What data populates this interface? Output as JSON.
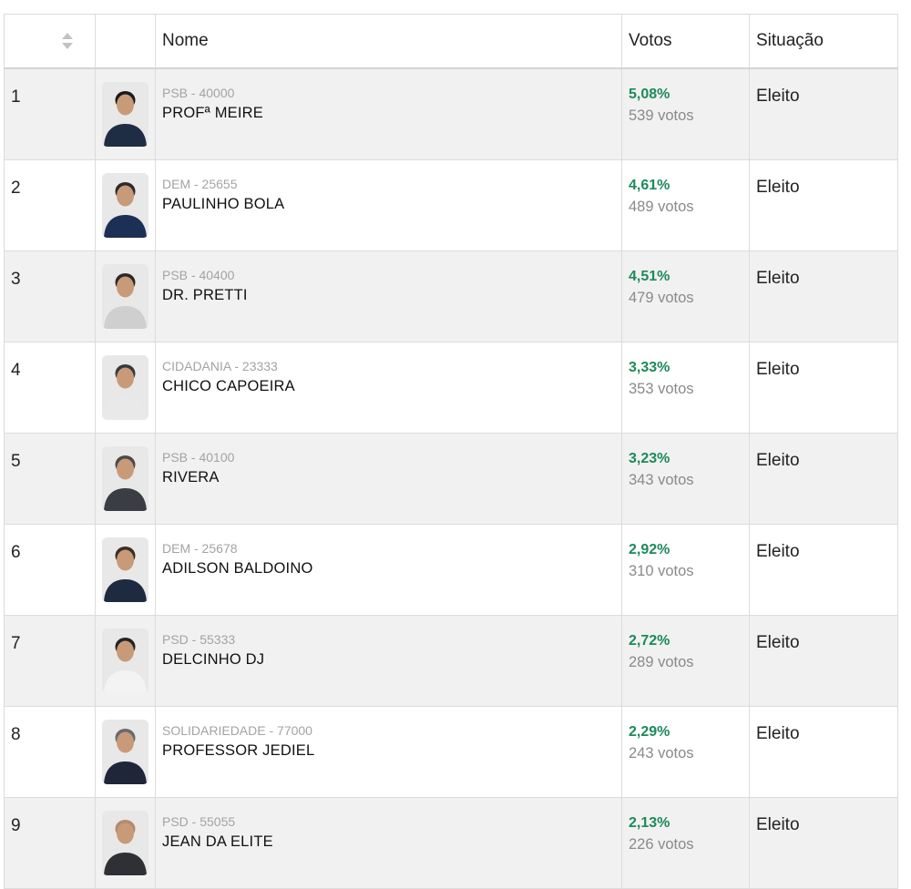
{
  "table": {
    "headers": {
      "rank": "",
      "photo": "",
      "name": "Nome",
      "votes": "Votos",
      "status": "Situação"
    },
    "rows": [
      {
        "rank": "1",
        "party": "PSB - 40000",
        "name": "PROFª MEIRE",
        "percent": "5,08%",
        "votes": "539 votos",
        "status": "Eleito"
      },
      {
        "rank": "2",
        "party": "DEM - 25655",
        "name": "PAULINHO BOLA",
        "percent": "4,61%",
        "votes": "489 votos",
        "status": "Eleito"
      },
      {
        "rank": "3",
        "party": "PSB - 40400",
        "name": "DR. PRETTI",
        "percent": "4,51%",
        "votes": "479 votos",
        "status": "Eleito"
      },
      {
        "rank": "4",
        "party": "CIDADANIA - 23333",
        "name": "CHICO CAPOEIRA",
        "percent": "3,33%",
        "votes": "353 votos",
        "status": "Eleito"
      },
      {
        "rank": "5",
        "party": "PSB - 40100",
        "name": "RIVERA",
        "percent": "3,23%",
        "votes": "343 votos",
        "status": "Eleito"
      },
      {
        "rank": "6",
        "party": "DEM - 25678",
        "name": "ADILSON BALDOINO",
        "percent": "2,92%",
        "votes": "310 votos",
        "status": "Eleito"
      },
      {
        "rank": "7",
        "party": "PSD - 55333",
        "name": "DELCINHO DJ",
        "percent": "2,72%",
        "votes": "289 votos",
        "status": "Eleito"
      },
      {
        "rank": "8",
        "party": "SOLIDARIEDADE - 77000",
        "name": "PROFESSOR JEDIEL",
        "percent": "2,29%",
        "votes": "243 votos",
        "status": "Eleito"
      },
      {
        "rank": "9",
        "party": "PSD - 55055",
        "name": "JEAN DA ELITE",
        "percent": "2,13%",
        "votes": "226 votos",
        "status": "Eleito"
      }
    ]
  },
  "icons": {
    "sort": "sort-icon",
    "avatar": "candidate-photo"
  },
  "colors": {
    "percent": "#1c8a5a",
    "muted": "#a3a3a3",
    "row_alt": "#f1f1f1",
    "border": "#dcdcdc"
  }
}
